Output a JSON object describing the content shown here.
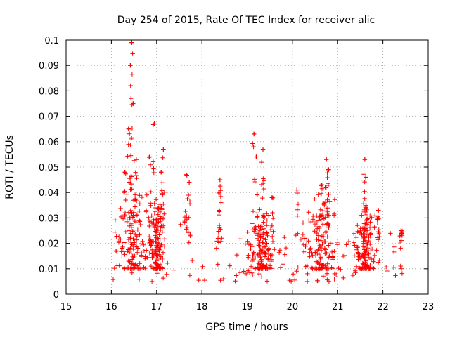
{
  "chart_data": {
    "type": "scatter",
    "title": "Day 254 of 2015, Rate Of TEC Index for receiver alic",
    "xlabel": "GPS time / hours",
    "ylabel": "ROTI / TECUs",
    "xlim": [
      15,
      23
    ],
    "ylim": [
      0,
      0.1
    ],
    "xticks": [
      "15",
      "16",
      "17",
      "18",
      "19",
      "20",
      "21",
      "22",
      "23"
    ],
    "yticks": [
      "0",
      "0.01",
      "0.02",
      "0.03",
      "0.04",
      "0.05",
      "0.06",
      "0.07",
      "0.08",
      "0.09",
      "0.1"
    ],
    "grid": true,
    "marker": "+",
    "marker_color": "#ff0000",
    "time_range": [
      16.0,
      22.5
    ],
    "baseline_band": [
      0.005,
      0.025
    ],
    "series": [
      {
        "name": "ROTI",
        "peaks": [
          {
            "x": 16.3,
            "y": 0.048
          },
          {
            "x": 16.38,
            "y": 0.065
          },
          {
            "x": 16.42,
            "y": 0.09
          },
          {
            "x": 16.45,
            "y": 0.099
          },
          {
            "x": 16.48,
            "y": 0.075
          },
          {
            "x": 16.55,
            "y": 0.053
          },
          {
            "x": 16.85,
            "y": 0.054
          },
          {
            "x": 16.95,
            "y": 0.067
          },
          {
            "x": 17.15,
            "y": 0.057
          },
          {
            "x": 17.1,
            "y": 0.048
          },
          {
            "x": 17.65,
            "y": 0.047
          },
          {
            "x": 17.72,
            "y": 0.044
          },
          {
            "x": 18.4,
            "y": 0.045
          },
          {
            "x": 18.38,
            "y": 0.033
          },
          {
            "x": 19.15,
            "y": 0.063
          },
          {
            "x": 19.2,
            "y": 0.054
          },
          {
            "x": 19.35,
            "y": 0.057
          },
          {
            "x": 19.55,
            "y": 0.038
          },
          {
            "x": 20.1,
            "y": 0.041
          },
          {
            "x": 20.65,
            "y": 0.043
          },
          {
            "x": 20.75,
            "y": 0.053
          },
          {
            "x": 20.8,
            "y": 0.049
          },
          {
            "x": 21.6,
            "y": 0.053
          },
          {
            "x": 21.62,
            "y": 0.046
          },
          {
            "x": 21.9,
            "y": 0.033
          },
          {
            "x": 22.4,
            "y": 0.025
          }
        ],
        "clusters": [
          {
            "x": 16.45,
            "spread": 0.45,
            "ymax": 0.042
          },
          {
            "x": 17.0,
            "spread": 0.2,
            "ymax": 0.038
          },
          {
            "x": 19.3,
            "spread": 0.35,
            "ymax": 0.034
          },
          {
            "x": 20.6,
            "spread": 0.45,
            "ymax": 0.04
          },
          {
            "x": 21.6,
            "spread": 0.3,
            "ymax": 0.033
          }
        ]
      }
    ]
  }
}
